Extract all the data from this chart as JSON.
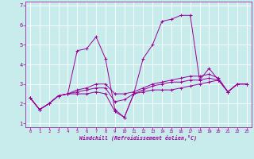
{
  "title": "",
  "xlabel": "Windchill (Refroidissement éolien,°C)",
  "ylabel": "",
  "background_color": "#c8ecec",
  "line_color": "#990099",
  "grid_color": "#ffffff",
  "xlim": [
    -0.5,
    23.5
  ],
  "ylim": [
    0.8,
    7.2
  ],
  "xticks": [
    0,
    1,
    2,
    3,
    4,
    5,
    6,
    7,
    8,
    9,
    10,
    11,
    12,
    13,
    14,
    15,
    16,
    17,
    18,
    19,
    20,
    21,
    22,
    23
  ],
  "yticks": [
    1,
    2,
    3,
    4,
    5,
    6,
    7
  ],
  "series": [
    {
      "x": [
        0,
        1,
        2,
        3,
        4,
        5,
        6,
        7,
        8,
        9,
        10,
        11,
        12,
        13,
        14,
        15,
        16,
        17,
        18,
        19,
        20,
        21,
        22,
        23
      ],
      "y": [
        2.3,
        1.7,
        2.0,
        2.4,
        2.5,
        4.7,
        4.8,
        5.4,
        4.3,
        1.7,
        1.3,
        2.5,
        4.3,
        5.0,
        6.2,
        6.3,
        6.5,
        6.5,
        3.2,
        3.8,
        3.2,
        2.6,
        3.0,
        3.0
      ]
    },
    {
      "x": [
        0,
        1,
        2,
        3,
        4,
        5,
        6,
        7,
        8,
        9,
        10,
        11,
        12,
        13,
        14,
        15,
        16,
        17,
        18,
        19,
        20,
        21,
        22,
        23
      ],
      "y": [
        2.3,
        1.7,
        2.0,
        2.4,
        2.5,
        2.5,
        2.5,
        2.6,
        2.5,
        1.6,
        1.3,
        2.5,
        2.6,
        2.7,
        2.7,
        2.7,
        2.8,
        2.9,
        3.0,
        3.1,
        3.2,
        2.6,
        3.0,
        3.0
      ]
    },
    {
      "x": [
        0,
        1,
        2,
        3,
        4,
        5,
        6,
        7,
        8,
        9,
        10,
        11,
        12,
        13,
        14,
        15,
        16,
        17,
        18,
        19,
        20,
        21,
        22,
        23
      ],
      "y": [
        2.3,
        1.7,
        2.0,
        2.4,
        2.5,
        2.6,
        2.7,
        2.8,
        2.8,
        2.1,
        2.2,
        2.5,
        2.7,
        2.9,
        3.0,
        3.1,
        3.1,
        3.2,
        3.2,
        3.3,
        3.2,
        2.6,
        3.0,
        3.0
      ]
    },
    {
      "x": [
        0,
        1,
        2,
        3,
        4,
        5,
        6,
        7,
        8,
        9,
        10,
        11,
        12,
        13,
        14,
        15,
        16,
        17,
        18,
        19,
        20,
        21,
        22,
        23
      ],
      "y": [
        2.3,
        1.7,
        2.0,
        2.4,
        2.5,
        2.7,
        2.8,
        3.0,
        3.0,
        2.5,
        2.5,
        2.6,
        2.8,
        3.0,
        3.1,
        3.2,
        3.3,
        3.4,
        3.4,
        3.5,
        3.3,
        2.6,
        3.0,
        3.0
      ]
    }
  ]
}
